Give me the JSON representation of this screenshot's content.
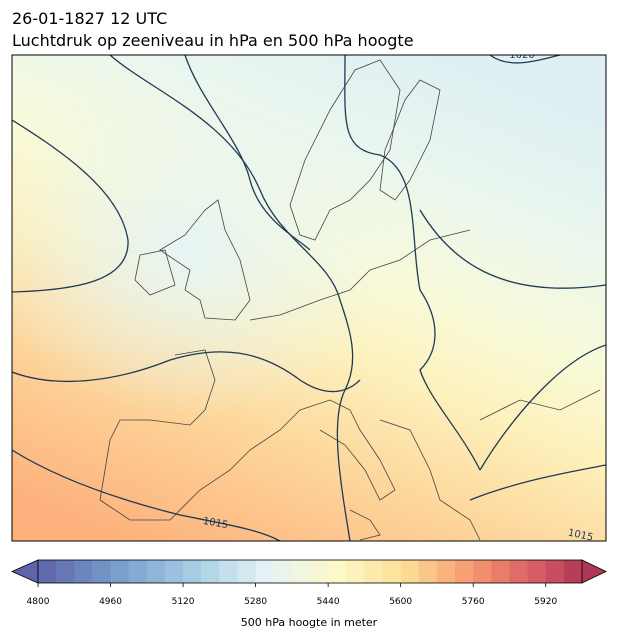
{
  "header": {
    "title": "26-01-1827 12 UTC",
    "subtitle": "Luchtdruk op zeeniveau in hPa en 500 hPa hoogte"
  },
  "map": {
    "contour_labels": [
      "1015",
      "1015",
      "1020"
    ]
  },
  "colorbar": {
    "range": [
      4800,
      6000
    ],
    "ticks": [
      4800,
      4960,
      5120,
      5280,
      5440,
      5600,
      5760,
      5920
    ],
    "label": "500 hPa hoogte in meter"
  }
}
